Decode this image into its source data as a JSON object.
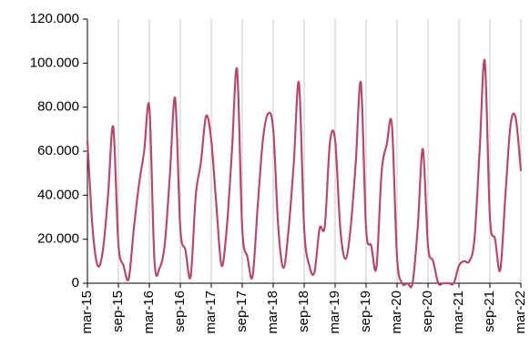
{
  "chart_data": {
    "type": "line",
    "categories": [
      "mar-15",
      null,
      null,
      null,
      null,
      null,
      "sep-15",
      null,
      null,
      null,
      null,
      null,
      "mar-16",
      null,
      null,
      null,
      null,
      null,
      "sep-16",
      null,
      null,
      null,
      null,
      null,
      "mar-17",
      null,
      null,
      null,
      null,
      null,
      "sep-17",
      null,
      null,
      null,
      null,
      null,
      "mar-18",
      null,
      null,
      null,
      null,
      null,
      "sep-18",
      null,
      null,
      null,
      null,
      null,
      "mar-19",
      null,
      null,
      null,
      null,
      null,
      "sep-19",
      null,
      null,
      null,
      null,
      null,
      "mar-20",
      null,
      null,
      null,
      null,
      null,
      "sep-20",
      null,
      null,
      null,
      null,
      null,
      "mar-21",
      null,
      null,
      null,
      null,
      null,
      "sep-21",
      null,
      null,
      null,
      null,
      null,
      "mar-22"
    ],
    "values": [
      65000,
      25000,
      8000,
      15000,
      40000,
      71000,
      18000,
      8000,
      2000,
      25000,
      45000,
      60000,
      80000,
      10000,
      7000,
      18000,
      50000,
      84000,
      25000,
      15000,
      3000,
      40000,
      55000,
      76000,
      65000,
      35000,
      8000,
      25000,
      60000,
      97000,
      25000,
      12000,
      3000,
      35000,
      65000,
      77000,
      70000,
      25000,
      7000,
      25000,
      55000,
      91000,
      25000,
      8000,
      5000,
      25000,
      26000,
      64000,
      65000,
      25000,
      11000,
      25000,
      55000,
      91000,
      25000,
      17000,
      7000,
      50000,
      63000,
      72000,
      12000,
      0,
      0,
      0,
      25000,
      61000,
      17000,
      10000,
      0,
      0,
      0,
      0,
      8000,
      10000,
      10000,
      20000,
      60000,
      101000,
      30000,
      20000,
      6000,
      40000,
      72000,
      75000,
      51000
    ],
    "color": "#b5496c",
    "ylim": [
      0,
      120000
    ],
    "yticks": [
      0,
      {
        "value": 20000,
        "label": "20.000"
      },
      {
        "value": 40000,
        "label": "40.000"
      },
      {
        "value": 60000,
        "label": "60.000"
      },
      {
        "value": 80000,
        "label": "80.000"
      },
      {
        "value": 100000,
        "label": "100.000"
      },
      {
        "value": 120000,
        "label": "120.000"
      }
    ],
    "grid": true
  }
}
